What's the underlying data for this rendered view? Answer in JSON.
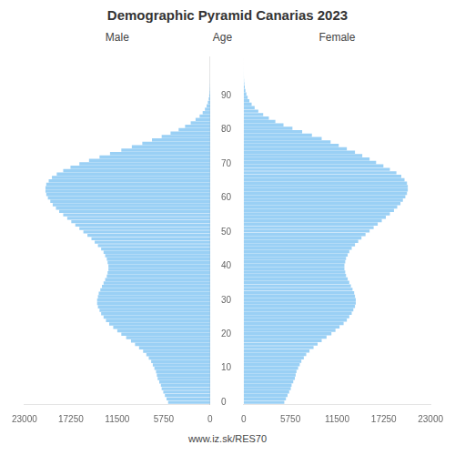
{
  "chart_data": {
    "type": "bar",
    "orientation": "horizontal",
    "title": "Demographic Pyramid Canarias 2023",
    "ylabel": "Age",
    "annotations": [
      "www.iz.sk/RES70"
    ],
    "categories": [
      "0",
      null,
      null,
      null,
      null,
      null,
      null,
      null,
      null,
      null,
      "10",
      null,
      null,
      null,
      null,
      null,
      null,
      null,
      null,
      null,
      "20",
      null,
      null,
      null,
      null,
      null,
      null,
      null,
      null,
      null,
      "30",
      null,
      null,
      null,
      null,
      null,
      null,
      null,
      null,
      null,
      "40",
      null,
      null,
      null,
      null,
      null,
      null,
      null,
      null,
      null,
      "50",
      null,
      null,
      null,
      null,
      null,
      null,
      null,
      null,
      null,
      "60",
      null,
      null,
      null,
      null,
      null,
      null,
      null,
      null,
      null,
      "70",
      null,
      null,
      null,
      null,
      null,
      null,
      null,
      null,
      null,
      "80",
      null,
      null,
      null,
      null,
      null,
      null,
      null,
      null,
      null,
      "90",
      null,
      null,
      null,
      null,
      null,
      null,
      null,
      null,
      null,
      null,
      null
    ],
    "series": [
      {
        "name": "Male",
        "values": [
          5200,
          5400,
          5600,
          5800,
          6000,
          6100,
          6300,
          6500,
          6600,
          6700,
          6900,
          7100,
          7300,
          7600,
          7900,
          8300,
          8800,
          9300,
          9800,
          10400,
          11000,
          11500,
          12000,
          12500,
          12900,
          13200,
          13500,
          13700,
          13900,
          14000,
          14000,
          13900,
          13800,
          13600,
          13400,
          13200,
          13000,
          12800,
          12700,
          12600,
          12600,
          12700,
          12800,
          13000,
          13200,
          13500,
          13900,
          14300,
          14700,
          15200,
          15700,
          16200,
          16700,
          17200,
          17700,
          18200,
          18700,
          19100,
          19500,
          19800,
          20100,
          20300,
          20400,
          20400,
          20300,
          20000,
          19600,
          19000,
          18200,
          17300,
          16200,
          15000,
          13700,
          12400,
          11000,
          9700,
          8400,
          7200,
          6000,
          4900,
          3900,
          3100,
          2400,
          1800,
          1300,
          920,
          640,
          430,
          280,
          175,
          105,
          62,
          35,
          19,
          10,
          5,
          3,
          1,
          1,
          0,
          0,
          0
        ]
      },
      {
        "name": "Female",
        "values": [
          5000,
          5200,
          5400,
          5600,
          5800,
          5900,
          6100,
          6300,
          6400,
          6500,
          6700,
          6900,
          7100,
          7400,
          7700,
          8100,
          8600,
          9100,
          9600,
          10200,
          10800,
          11300,
          11800,
          12300,
          12700,
          13000,
          13300,
          13500,
          13700,
          13800,
          13800,
          13700,
          13600,
          13400,
          13200,
          13000,
          12800,
          12600,
          12500,
          12400,
          12400,
          12500,
          12600,
          12800,
          13000,
          13300,
          13700,
          14100,
          14500,
          15000,
          15500,
          16000,
          16500,
          17000,
          17500,
          18000,
          18500,
          18900,
          19300,
          19600,
          19900,
          20100,
          20200,
          20200,
          20100,
          19800,
          19400,
          18800,
          18000,
          17200,
          16300,
          15500,
          14600,
          13700,
          12700,
          11700,
          10700,
          9600,
          8400,
          7200,
          6000,
          4900,
          3900,
          3100,
          2400,
          1800,
          1350,
          980,
          700,
          490,
          330,
          215,
          135,
          82,
          47,
          26,
          14,
          7,
          3,
          1,
          1,
          0
        ]
      }
    ],
    "xlim": [
      0,
      23000
    ],
    "xticks": [
      0,
      5750,
      11500,
      17250,
      23000
    ],
    "grid": false
  }
}
